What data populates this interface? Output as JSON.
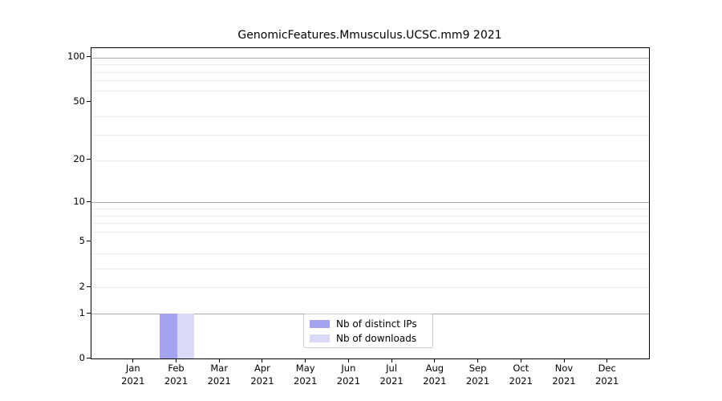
{
  "title": "GenomicFeatures.Mmusculus.UCSC.mm9 2021",
  "chart_data": {
    "type": "bar",
    "title": "GenomicFeatures.Mmusculus.UCSC.mm9 2021",
    "categories": [
      "Jan 2021",
      "Feb 2021",
      "Mar 2021",
      "Apr 2021",
      "May 2021",
      "Jun 2021",
      "Jul 2021",
      "Aug 2021",
      "Sep 2021",
      "Oct 2021",
      "Nov 2021",
      "Dec 2021"
    ],
    "series": [
      {
        "name": "Nb of distinct IPs",
        "color": "#a3a3f0",
        "values": [
          0,
          1,
          0,
          0,
          0,
          0,
          0,
          0,
          0,
          0,
          0,
          0
        ]
      },
      {
        "name": "Nb of downloads",
        "color": "#d9d9f8",
        "values": [
          0,
          1,
          0,
          0,
          0,
          0,
          0,
          0,
          0,
          0,
          0,
          0
        ]
      }
    ],
    "xlabel": "",
    "ylabel": "",
    "y_scale": "log1p",
    "y_ticks": [
      0,
      1,
      2,
      5,
      10,
      20,
      50,
      100
    ],
    "y_major_gridlines": [
      1,
      10,
      100
    ],
    "y_minor_gridlines": [
      2,
      3,
      4,
      6,
      7,
      8,
      9,
      20,
      30,
      40,
      60,
      70,
      80,
      90
    ],
    "ylim": [
      0,
      116
    ],
    "grid": "horizontal",
    "legend_position": "lower center"
  },
  "legend": {
    "items": [
      {
        "label": "Nb of distinct IPs",
        "color": "#a3a3f0"
      },
      {
        "label": "Nb of downloads",
        "color": "#d9d9f8"
      }
    ]
  },
  "colors": {
    "major_grid": "#ababab",
    "minor_grid": "#eeeeee",
    "axis": "#000000",
    "legend_border": "#cccccc",
    "background": "#ffffff"
  }
}
